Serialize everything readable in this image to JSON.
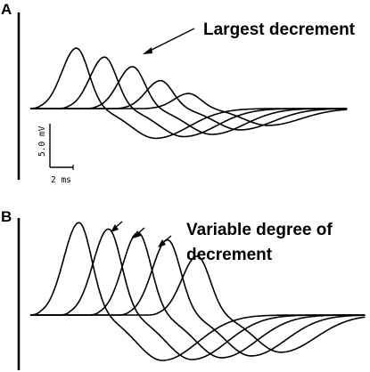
{
  "chart_data": [
    {
      "panel": "A",
      "type": "line",
      "annotation": "Largest decrement",
      "scale_bar": {
        "voltage_label": "5.0 mV",
        "time_label": "2 ms"
      },
      "ylim": [
        -6.5,
        13
      ],
      "baseline_level": 0,
      "series": [
        {
          "start_ms": 0.0,
          "peak_mv": 10.8,
          "trough_mv": -5.3
        },
        {
          "start_ms": 1.7,
          "peak_mv": 9.2,
          "trough_mv": -5.0
        },
        {
          "start_ms": 3.4,
          "peak_mv": 7.5,
          "trough_mv": -4.6
        },
        {
          "start_ms": 5.1,
          "peak_mv": 5.0,
          "trough_mv": -3.8
        },
        {
          "start_ms": 6.8,
          "peak_mv": 2.7,
          "trough_mv": -3.0
        }
      ]
    },
    {
      "panel": "B",
      "type": "line",
      "annotation": "Variable degree of decrement",
      "ylim": [
        -6.5,
        12.5
      ],
      "baseline_level": 0,
      "series": [
        {
          "start_ms": 0.0,
          "peak_mv": 10.2,
          "trough_mv": -5.0
        },
        {
          "start_ms": 1.7,
          "peak_mv": 9.5,
          "trough_mv": -4.9
        },
        {
          "start_ms": 3.4,
          "peak_mv": 9.1,
          "trough_mv": -4.7
        },
        {
          "start_ms": 5.1,
          "peak_mv": 8.3,
          "trough_mv": -4.5
        },
        {
          "start_ms": 6.8,
          "peak_mv": 6.5,
          "trough_mv": -4.1
        }
      ]
    }
  ]
}
